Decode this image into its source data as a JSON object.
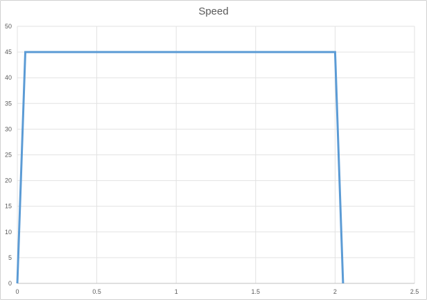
{
  "chart_data": {
    "type": "line",
    "title": "Speed",
    "xlabel": "",
    "ylabel": "",
    "xlim": [
      0,
      2.5
    ],
    "ylim": [
      0,
      50
    ],
    "x_ticks": [
      "0",
      "0.5",
      "1",
      "1.5",
      "2",
      "2.5"
    ],
    "y_ticks": [
      "0",
      "5",
      "10",
      "15",
      "20",
      "25",
      "30",
      "35",
      "40",
      "45",
      "50"
    ],
    "grid": true,
    "legend": "none",
    "series": [
      {
        "color": "#5b9bd5",
        "x": [
          0,
          0.05,
          2.0,
          2.05
        ],
        "y": [
          0,
          45,
          45,
          0
        ]
      }
    ]
  }
}
